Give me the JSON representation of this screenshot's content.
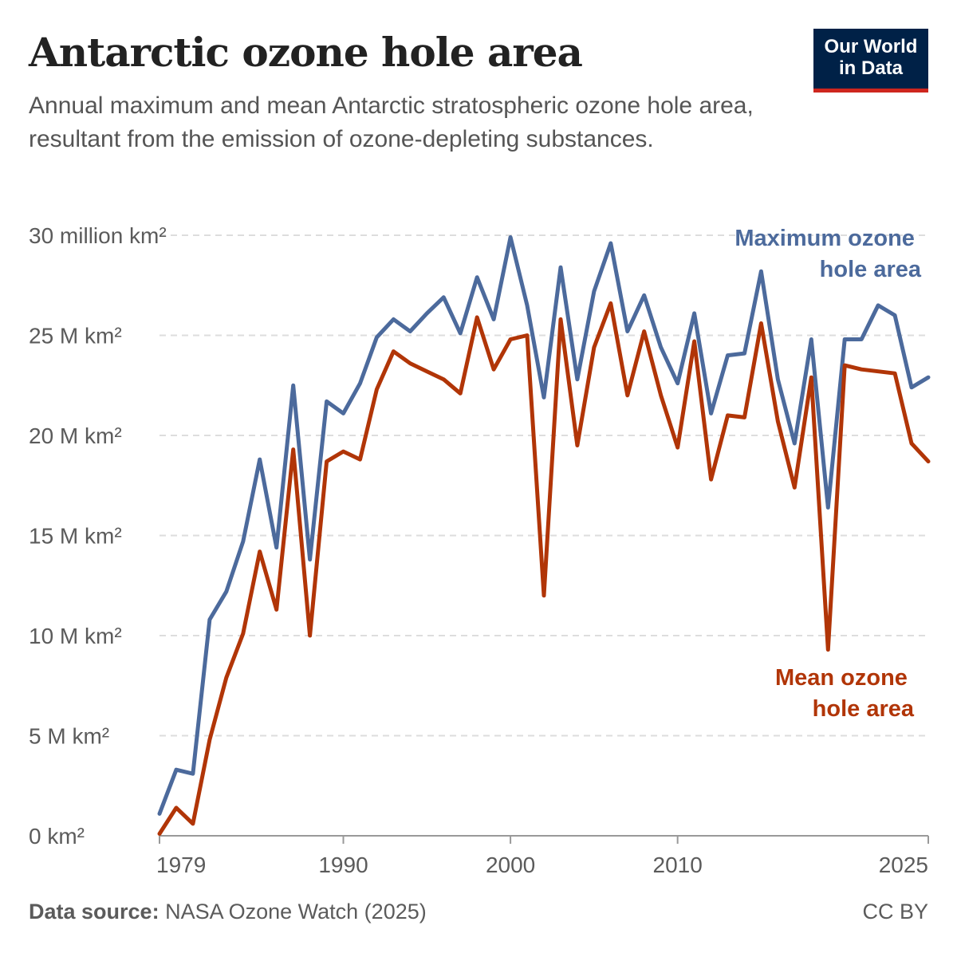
{
  "header": {
    "title": "Antarctic ozone hole area",
    "subtitle": "Annual maximum and mean Antarctic stratospheric ozone hole area, resultant from the emission of ozone-depleting substances.",
    "logo_line1": "Our World",
    "logo_line2": "in Data"
  },
  "footer": {
    "source_label": "Data source:",
    "source_text": "NASA Ozone Watch (2025)",
    "license": "CC BY"
  },
  "colors": {
    "max_series": "#4c6a9c",
    "mean_series": "#b13507",
    "gridline": "#dddddd",
    "logo_bg": "#002147",
    "logo_accent": "#ce261e"
  },
  "chart_data": {
    "type": "line",
    "x_ticks": [
      1979,
      1990,
      2000,
      2010,
      2025
    ],
    "y_ticks": [
      {
        "value": 0,
        "label": "0 km²"
      },
      {
        "value": 5,
        "label": "5 M km²"
      },
      {
        "value": 10,
        "label": "10 M km²"
      },
      {
        "value": 15,
        "label": "15 M km²"
      },
      {
        "value": 20,
        "label": "20 M km²"
      },
      {
        "value": 25,
        "label": "25 M km²"
      },
      {
        "value": 30,
        "label": "30 million km²"
      }
    ],
    "xlim": [
      1979,
      2025
    ],
    "ylim": [
      0,
      30
    ],
    "y_unit": "million km²",
    "grid": "horizontal dashed",
    "legend": "inline labels at right",
    "x": [
      1979,
      1980,
      1981,
      1982,
      1983,
      1984,
      1985,
      1986,
      1987,
      1988,
      1989,
      1990,
      1991,
      1992,
      1993,
      1994,
      1995,
      1996,
      1997,
      1998,
      1999,
      2000,
      2001,
      2002,
      2003,
      2004,
      2005,
      2006,
      2007,
      2008,
      2009,
      2010,
      2011,
      2012,
      2013,
      2014,
      2015,
      2016,
      2017,
      2018,
      2019,
      2020,
      2021,
      2022,
      2023,
      2024,
      2025
    ],
    "series": [
      {
        "name": "Maximum ozone hole area",
        "color": "#4c6a9c",
        "values": [
          1.1,
          3.3,
          3.1,
          10.8,
          12.2,
          14.7,
          18.8,
          14.4,
          22.5,
          13.8,
          21.7,
          21.1,
          22.6,
          24.9,
          25.8,
          25.2,
          26.1,
          26.9,
          25.1,
          27.9,
          25.8,
          29.9,
          26.5,
          21.9,
          28.4,
          22.8,
          27.2,
          29.6,
          25.2,
          27.0,
          24.4,
          22.6,
          26.1,
          21.1,
          24.0,
          24.1,
          28.2,
          22.8,
          19.6,
          24.8,
          16.4,
          24.8,
          24.8,
          26.5,
          26.0,
          22.4,
          22.9
        ]
      },
      {
        "name": "Mean ozone hole area",
        "color": "#b13507",
        "values": [
          0.1,
          1.4,
          0.6,
          4.8,
          7.9,
          10.1,
          14.2,
          11.3,
          19.3,
          10.0,
          18.7,
          19.2,
          18.8,
          22.3,
          24.2,
          23.6,
          23.2,
          22.8,
          22.1,
          25.9,
          23.3,
          24.8,
          25.0,
          12.0,
          25.8,
          19.5,
          24.4,
          26.6,
          22.0,
          25.2,
          22.0,
          19.4,
          24.7,
          17.8,
          21.0,
          20.9,
          25.6,
          20.7,
          17.4,
          22.9,
          9.3,
          23.5,
          23.3,
          23.2,
          23.1,
          19.6,
          18.7
        ]
      }
    ]
  }
}
